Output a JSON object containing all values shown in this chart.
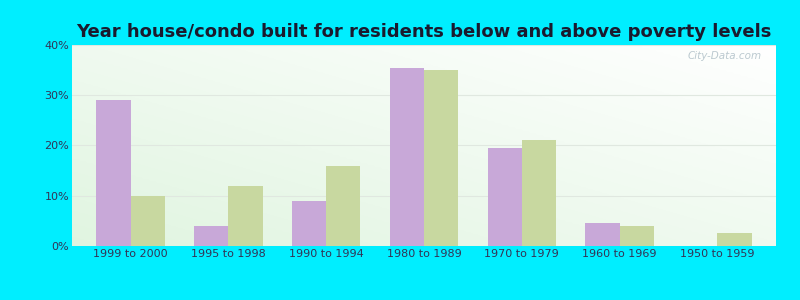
{
  "title": "Year house/condo built for residents below and above poverty levels",
  "categories": [
    "1999 to 2000",
    "1995 to 1998",
    "1990 to 1994",
    "1980 to 1989",
    "1970 to 1979",
    "1960 to 1969",
    "1950 to 1959"
  ],
  "below_poverty": [
    29.0,
    4.0,
    9.0,
    35.5,
    19.5,
    4.5,
    0.0
  ],
  "above_poverty": [
    10.0,
    12.0,
    16.0,
    35.0,
    21.0,
    4.0,
    2.5
  ],
  "below_color": "#c8a8d8",
  "above_color": "#c8d8a0",
  "background_outer": "#00eeff",
  "ylim": [
    0,
    40
  ],
  "yticks": [
    0,
    10,
    20,
    30,
    40
  ],
  "ytick_labels": [
    "0%",
    "10%",
    "20%",
    "30%",
    "40%"
  ],
  "title_fontsize": 13,
  "tick_fontsize": 8,
  "legend_fontsize": 9,
  "bar_width": 0.35,
  "watermark": "City-Data.com",
  "title_color": "#1a1a2e",
  "tick_color": "#333355",
  "legend_text_color": "#333355",
  "grid_color": "#e0e8e0",
  "watermark_color": "#b0c0c8"
}
